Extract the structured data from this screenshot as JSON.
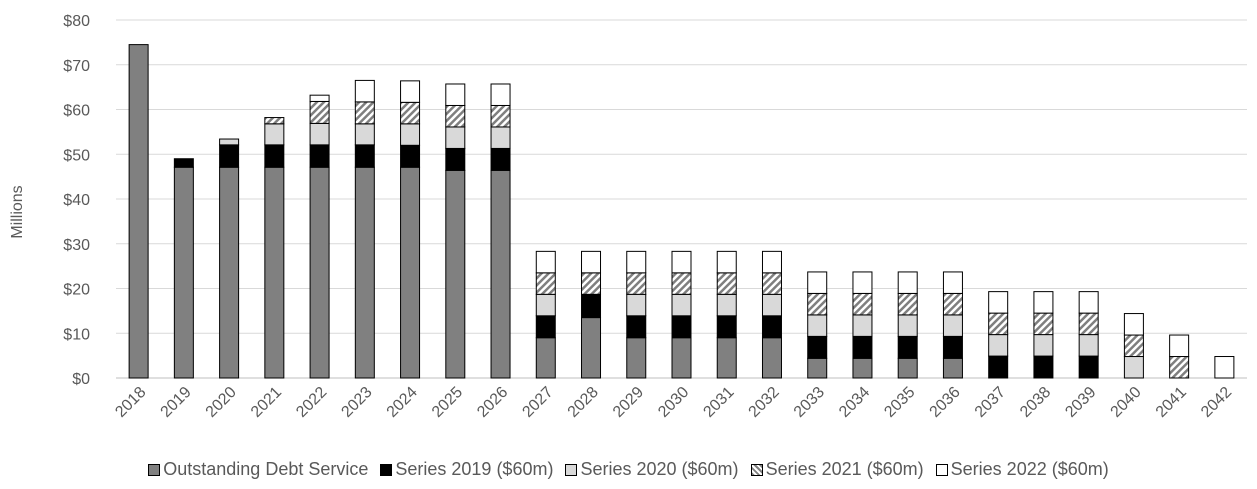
{
  "chart_data": {
    "type": "bar",
    "stacked": true,
    "title": "",
    "xlabel": "",
    "ylabel": "Millions",
    "ylim": [
      0,
      80
    ],
    "y_ticks": [
      "$0",
      "$10",
      "$20",
      "$30",
      "$40",
      "$50",
      "$60",
      "$70",
      "$80"
    ],
    "grid": true,
    "legend_position": "bottom",
    "categories": [
      "2018",
      "2019",
      "2020",
      "2021",
      "2022",
      "2023",
      "2024",
      "2025",
      "2026",
      "2027",
      "2028",
      "2029",
      "2030",
      "2031",
      "2032",
      "2033",
      "2034",
      "2035",
      "2036",
      "2037",
      "2038",
      "2039",
      "2040",
      "2041",
      "2042"
    ],
    "series": [
      {
        "name": "Outstanding Debt Service",
        "color": "#808080",
        "pattern": "solid",
        "values": [
          74.5,
          47.1,
          47.1,
          47.1,
          47.1,
          47.1,
          47.1,
          46.4,
          46.4,
          9.0,
          13.5,
          9.0,
          9.0,
          9.0,
          9.0,
          4.4,
          4.4,
          4.4,
          4.4,
          0,
          0,
          0,
          0,
          0,
          0
        ]
      },
      {
        "name": "Series 2019 ($60m)",
        "color": "#000000",
        "pattern": "solid",
        "values": [
          0,
          1.9,
          5.0,
          5.0,
          5.0,
          5.0,
          4.9,
          4.9,
          4.9,
          4.9,
          5.2,
          4.9,
          4.9,
          4.9,
          4.9,
          4.9,
          4.9,
          4.9,
          4.9,
          4.9,
          4.9,
          4.9,
          0,
          0,
          0
        ]
      },
      {
        "name": "Series 2020 ($60m)",
        "color": "#d9d9d9",
        "pattern": "solid",
        "values": [
          0,
          0,
          1.3,
          4.7,
          4.8,
          4.7,
          4.8,
          4.8,
          4.8,
          4.8,
          0,
          4.8,
          4.8,
          4.8,
          4.8,
          4.8,
          4.8,
          4.8,
          4.8,
          4.8,
          4.8,
          4.8,
          4.8,
          0,
          0
        ]
      },
      {
        "name": "Series 2021 ($60m)",
        "color": "#a6a6a6",
        "pattern": "hatch",
        "values": [
          0,
          0,
          0,
          1.4,
          4.9,
          4.9,
          4.8,
          4.8,
          4.8,
          4.8,
          4.8,
          4.8,
          4.8,
          4.8,
          4.8,
          4.8,
          4.8,
          4.8,
          4.8,
          4.8,
          4.8,
          4.8,
          4.8,
          4.8,
          0
        ]
      },
      {
        "name": "Series 2022 ($60m)",
        "color": "#ffffff",
        "pattern": "solid",
        "values": [
          0,
          0,
          0,
          0,
          1.4,
          4.8,
          4.8,
          4.8,
          4.8,
          4.8,
          4.8,
          4.8,
          4.8,
          4.8,
          4.8,
          4.8,
          4.8,
          4.8,
          4.8,
          4.8,
          4.8,
          4.8,
          4.8,
          4.8,
          4.8
        ]
      }
    ]
  }
}
